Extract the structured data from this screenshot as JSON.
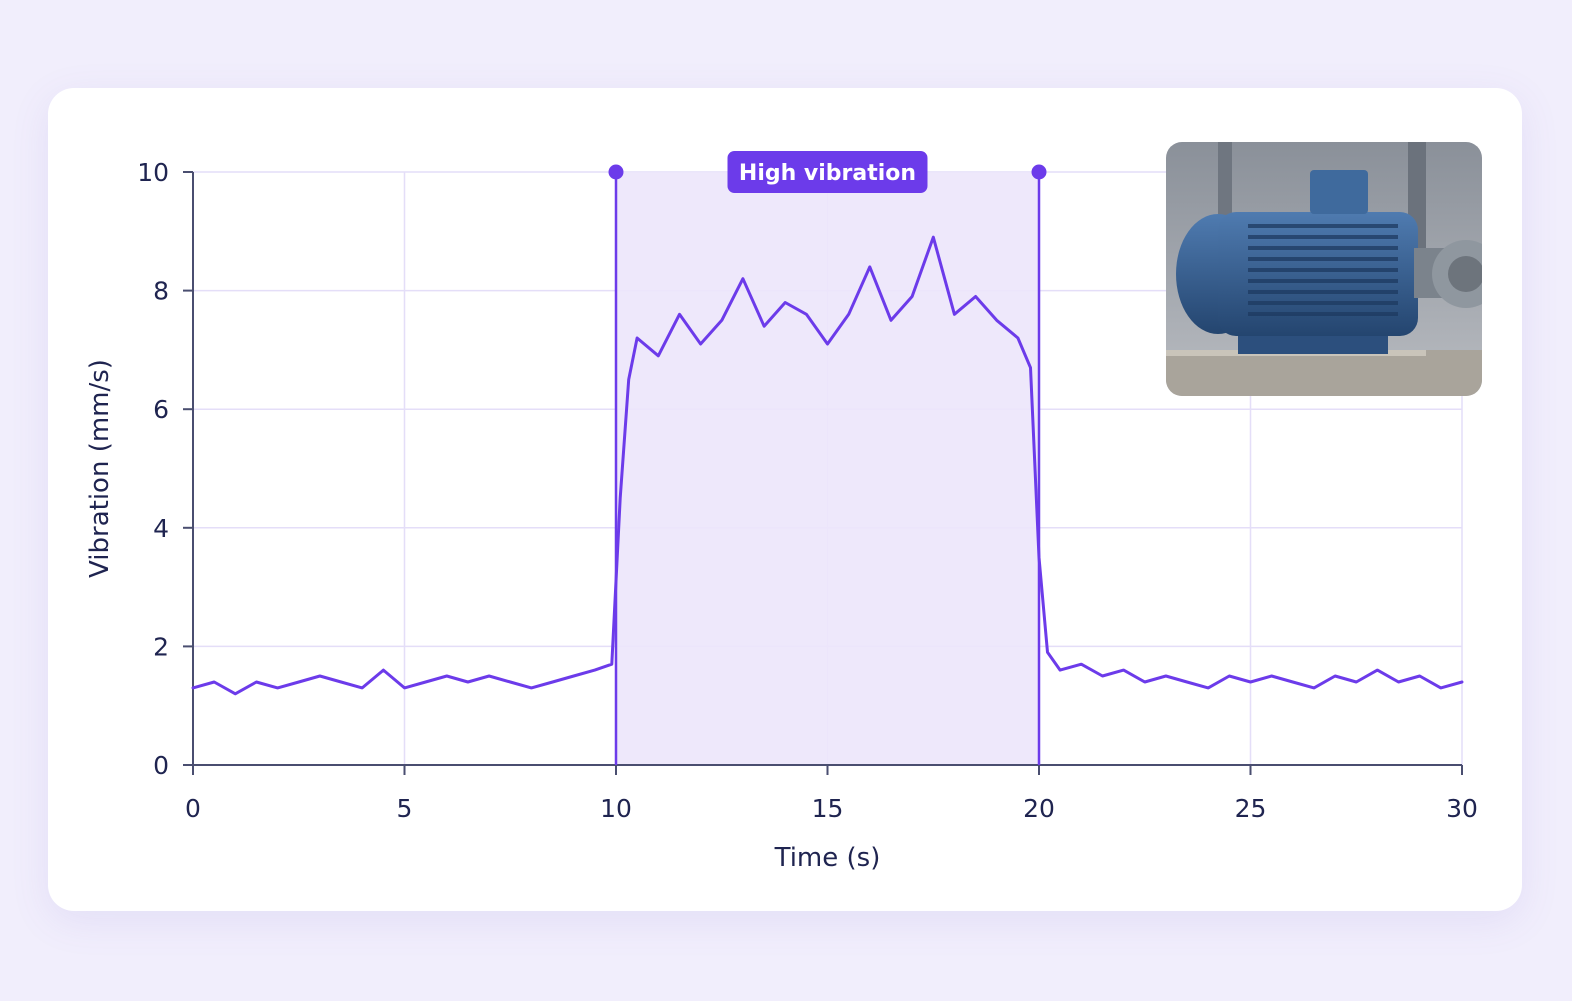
{
  "chart_data": {
    "type": "line",
    "title": "",
    "xlabel": "Time (s)",
    "ylabel": "Vibration (mm/s)",
    "xlim": [
      0,
      30
    ],
    "ylim": [
      0,
      10
    ],
    "x_ticks": [
      0,
      5,
      10,
      15,
      20,
      25,
      30
    ],
    "y_ticks": [
      0,
      2,
      4,
      6,
      8,
      10
    ],
    "grid": true,
    "line_color": "#6c3bea",
    "highlight": {
      "label": "High vibration",
      "x_start": 10,
      "x_end": 20,
      "fill_color": "#ece6fb",
      "badge_color": "#6c3bea"
    },
    "series": [
      {
        "x": [
          0,
          0.5,
          1,
          1.5,
          2,
          2.5,
          3,
          3.5,
          4,
          4.5,
          5,
          5.5,
          6,
          6.5,
          7,
          7.5,
          8,
          8.5,
          9,
          9.5,
          9.9,
          10.1,
          10.3,
          10.5,
          11,
          11.5,
          12,
          12.5,
          13,
          13.5,
          14,
          14.5,
          15,
          15.5,
          16,
          16.5,
          17,
          17.5,
          18,
          18.5,
          19,
          19.5,
          19.8,
          20,
          20.2,
          20.5,
          21,
          21.5,
          22,
          22.5,
          23,
          23.5,
          24,
          24.5,
          25,
          25.5,
          26,
          26.5,
          27,
          27.5,
          28,
          28.5,
          29,
          29.5,
          30
        ],
        "y": [
          1.3,
          1.4,
          1.2,
          1.4,
          1.3,
          1.4,
          1.5,
          1.4,
          1.3,
          1.6,
          1.3,
          1.4,
          1.5,
          1.4,
          1.5,
          1.4,
          1.3,
          1.4,
          1.5,
          1.6,
          1.7,
          4.5,
          6.5,
          7.2,
          6.9,
          7.6,
          7.1,
          7.5,
          8.2,
          7.4,
          7.8,
          7.6,
          7.1,
          7.6,
          8.4,
          7.5,
          7.9,
          8.9,
          7.6,
          7.9,
          7.5,
          7.2,
          6.7,
          3.5,
          1.9,
          1.6,
          1.7,
          1.5,
          1.6,
          1.4,
          1.5,
          1.4,
          1.3,
          1.5,
          1.4,
          1.5,
          1.4,
          1.3,
          1.5,
          1.4,
          1.6,
          1.4,
          1.5,
          1.3,
          1.4
        ]
      }
    ]
  },
  "photo": {
    "subject": "blue-electric-motor-icon"
  }
}
